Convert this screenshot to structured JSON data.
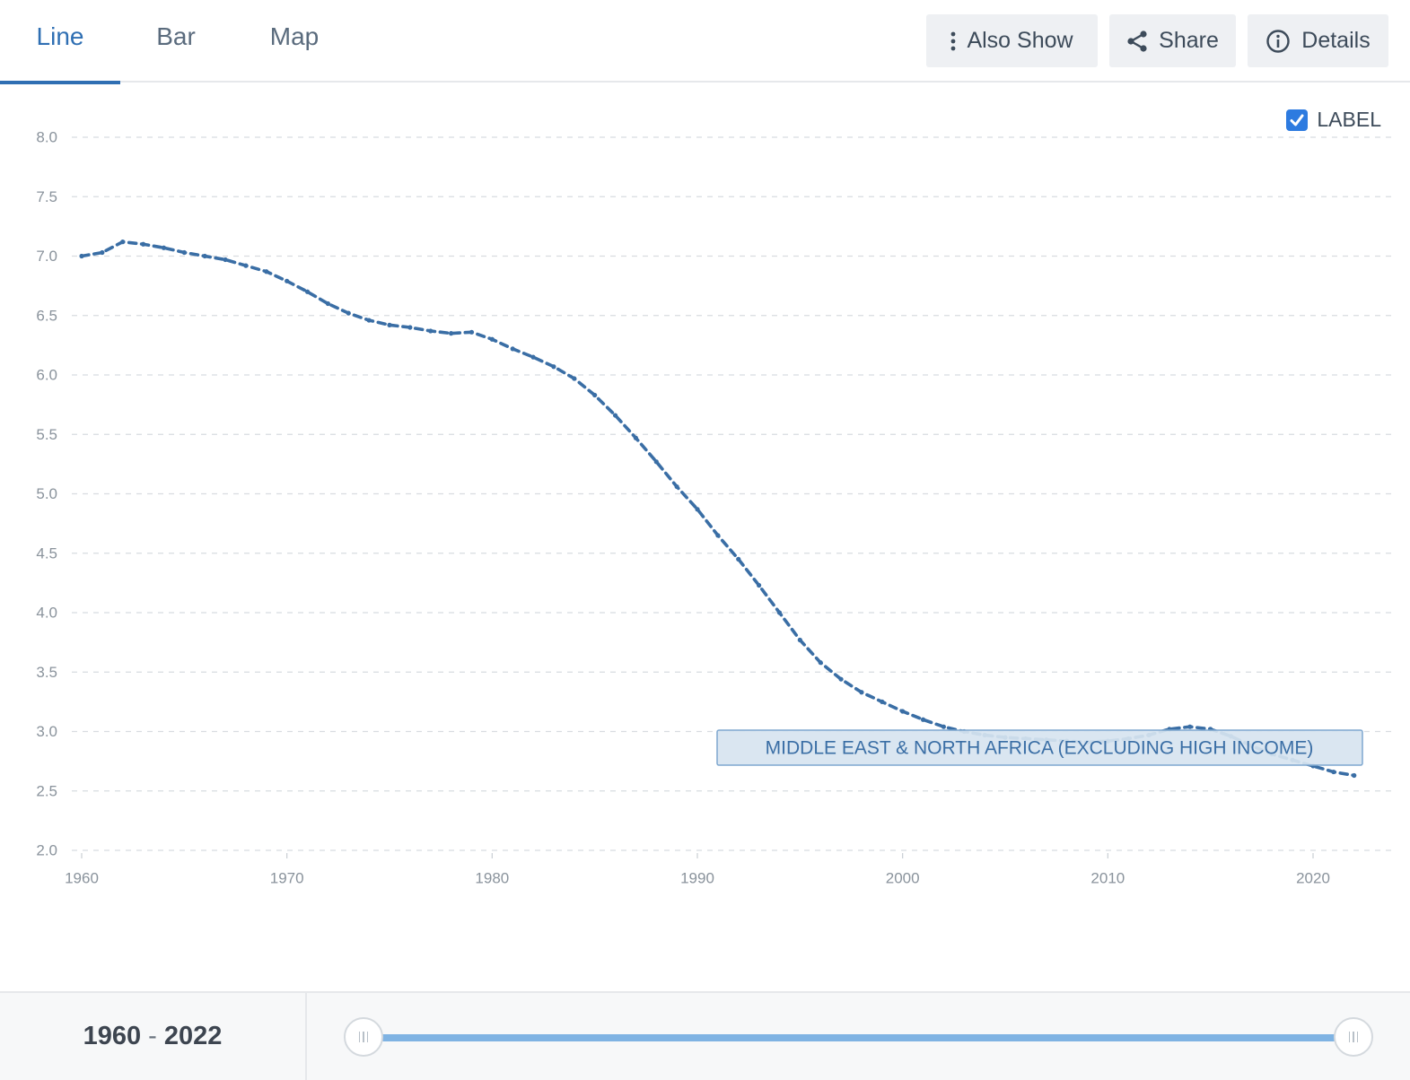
{
  "tabs": [
    {
      "label": "Line",
      "active": true
    },
    {
      "label": "Bar",
      "active": false
    },
    {
      "label": "Map",
      "active": false
    }
  ],
  "toolbar": {
    "also_show_label": "Also Show",
    "share_label": "Share",
    "details_label": "Details"
  },
  "label_toggle": {
    "text": "LABEL",
    "checked": true
  },
  "range": {
    "start": "1960",
    "end": "2022",
    "separator": "-"
  },
  "colors": {
    "accent": "#2f6fb3",
    "line": "#3a6ea5",
    "slider": "#7fb3e3"
  },
  "chart_data": {
    "type": "line",
    "ylim": [
      2.0,
      8.0
    ],
    "yticks": [
      "2.0",
      "2.5",
      "3.0",
      "3.5",
      "4.0",
      "4.5",
      "5.0",
      "5.5",
      "6.0",
      "6.5",
      "7.0",
      "7.5",
      "8.0"
    ],
    "xlim": [
      1960,
      2022
    ],
    "xticks": [
      "1960",
      "1970",
      "1980",
      "1990",
      "2000",
      "2010",
      "2020"
    ],
    "grid": true,
    "series": [
      {
        "name": "MIDDLE EAST & NORTH AFRICA (EXCLUDING HIGH INCOME)",
        "x": [
          1960,
          1961,
          1962,
          1963,
          1964,
          1965,
          1966,
          1967,
          1968,
          1969,
          1970,
          1971,
          1972,
          1973,
          1974,
          1975,
          1976,
          1977,
          1978,
          1979,
          1980,
          1981,
          1982,
          1983,
          1984,
          1985,
          1986,
          1987,
          1988,
          1989,
          1990,
          1991,
          1992,
          1993,
          1994,
          1995,
          1996,
          1997,
          1998,
          1999,
          2000,
          2001,
          2002,
          2003,
          2004,
          2005,
          2006,
          2007,
          2008,
          2009,
          2010,
          2011,
          2012,
          2013,
          2014,
          2015,
          2016,
          2017,
          2018,
          2019,
          2020,
          2021,
          2022
        ],
        "values": [
          7.0,
          7.03,
          7.12,
          7.1,
          7.07,
          7.03,
          7.0,
          6.97,
          6.92,
          6.87,
          6.79,
          6.7,
          6.6,
          6.52,
          6.46,
          6.42,
          6.4,
          6.37,
          6.35,
          6.36,
          6.3,
          6.22,
          6.15,
          6.07,
          5.97,
          5.83,
          5.66,
          5.47,
          5.27,
          5.06,
          4.87,
          4.65,
          4.45,
          4.23,
          4.0,
          3.77,
          3.58,
          3.44,
          3.33,
          3.25,
          3.17,
          3.1,
          3.04,
          3.0,
          2.97,
          2.95,
          2.94,
          2.93,
          2.92,
          2.91,
          2.92,
          2.94,
          2.97,
          3.02,
          3.04,
          3.02,
          2.96,
          2.88,
          2.81,
          2.76,
          2.71,
          2.66,
          2.63
        ]
      }
    ]
  }
}
